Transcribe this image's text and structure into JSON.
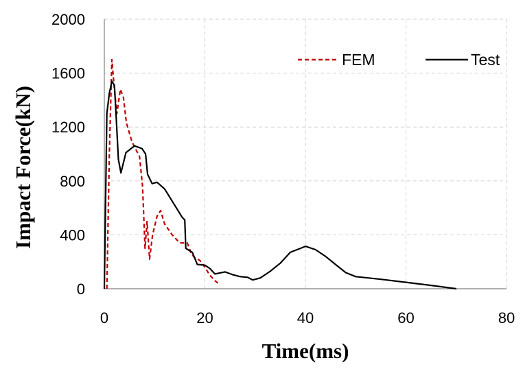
{
  "chart_data": {
    "type": "line",
    "title": "",
    "xlabel": "Time(ms)",
    "ylabel": "Impact Force(kN)",
    "xlim": [
      0,
      80
    ],
    "ylim": [
      0,
      2000
    ],
    "xticks": [
      0,
      20,
      40,
      60,
      80
    ],
    "yticks": [
      0,
      400,
      800,
      1200,
      1600,
      2000
    ],
    "xtick_labels": [
      "0",
      "20",
      "40",
      "60",
      "80"
    ],
    "ytick_labels": [
      "0",
      "400",
      "800",
      "1200",
      "1600",
      "2000"
    ],
    "grid": "dashed",
    "legend_position": "top-right",
    "series": [
      {
        "name": "FEM",
        "color": "#c00000",
        "style": "dashed",
        "points": [
          [
            0.5,
            0
          ],
          [
            1.0,
            1000
          ],
          [
            1.5,
            1700
          ],
          [
            2.0,
            1480
          ],
          [
            2.5,
            1300
          ],
          [
            3.2,
            1480
          ],
          [
            3.8,
            1420
          ],
          [
            4.4,
            1230
          ],
          [
            5.5,
            1090
          ],
          [
            7.0,
            980
          ],
          [
            7.6,
            760
          ],
          [
            8.1,
            300
          ],
          [
            8.5,
            500
          ],
          [
            9.0,
            220
          ],
          [
            9.6,
            400
          ],
          [
            10.5,
            540
          ],
          [
            11.2,
            580
          ],
          [
            12.0,
            480
          ],
          [
            13.5,
            400
          ],
          [
            15.0,
            340
          ],
          [
            16.5,
            340
          ],
          [
            17.3,
            260
          ],
          [
            18.0,
            230
          ],
          [
            19.0,
            210
          ],
          [
            20.0,
            160
          ],
          [
            21.0,
            100
          ],
          [
            22.0,
            60
          ],
          [
            23.0,
            30
          ]
        ]
      },
      {
        "name": "Test",
        "color": "#000000",
        "style": "solid",
        "points": [
          [
            0,
            0
          ],
          [
            0.5,
            1300
          ],
          [
            1.0,
            1450
          ],
          [
            1.5,
            1540
          ],
          [
            2.0,
            1510
          ],
          [
            2.3,
            1320
          ],
          [
            2.8,
            960
          ],
          [
            3.3,
            860
          ],
          [
            4.3,
            1010
          ],
          [
            6.0,
            1060
          ],
          [
            7.5,
            1040
          ],
          [
            8.2,
            1000
          ],
          [
            8.6,
            850
          ],
          [
            9.5,
            780
          ],
          [
            10.5,
            790
          ],
          [
            12.0,
            740
          ],
          [
            13.5,
            650
          ],
          [
            15.5,
            530
          ],
          [
            16.0,
            510
          ],
          [
            16.2,
            300
          ],
          [
            17.5,
            270
          ],
          [
            18.5,
            180
          ],
          [
            20.0,
            175
          ],
          [
            21.0,
            150
          ],
          [
            22.0,
            110
          ],
          [
            24.0,
            125
          ],
          [
            25.5,
            105
          ],
          [
            27.0,
            90
          ],
          [
            28.5,
            85
          ],
          [
            29.5,
            65
          ],
          [
            31.0,
            80
          ],
          [
            33.0,
            130
          ],
          [
            35.0,
            190
          ],
          [
            37.0,
            270
          ],
          [
            39.0,
            300
          ],
          [
            40.0,
            315
          ],
          [
            42.0,
            290
          ],
          [
            44.0,
            240
          ],
          [
            46.0,
            180
          ],
          [
            48.0,
            120
          ],
          [
            50.0,
            90
          ],
          [
            55.0,
            70
          ],
          [
            60.0,
            48
          ],
          [
            65.0,
            25
          ],
          [
            70.0,
            0
          ]
        ]
      }
    ]
  },
  "colors": {
    "axis": "#808080",
    "grid": "#d0d0d0"
  }
}
